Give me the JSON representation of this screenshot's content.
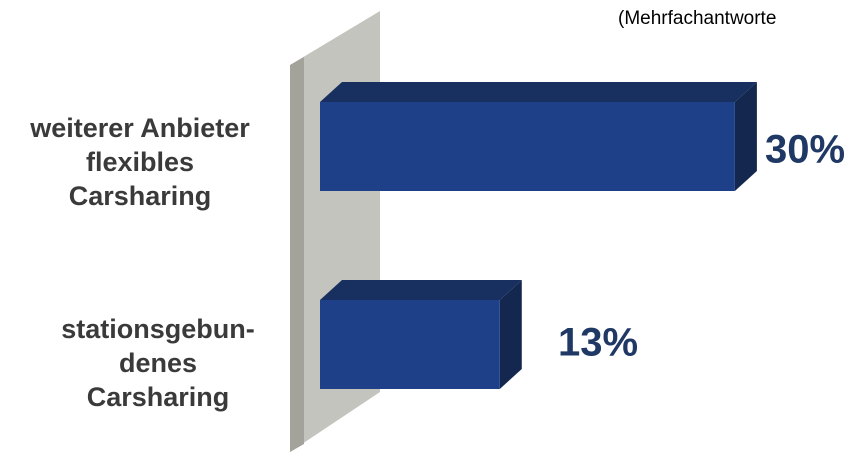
{
  "note": "(Mehrfachantworte",
  "chart_data": {
    "type": "bar",
    "orientation": "horizontal",
    "categories": [
      [
        "weiterer Anbieter",
        "flexibles",
        "Carsharing"
      ],
      [
        "stationsgebun-",
        "denes",
        "Carsharing"
      ]
    ],
    "values": [
      30,
      13
    ],
    "value_labels": [
      "30%",
      "13%"
    ],
    "xlim": [
      0,
      30
    ],
    "colors": {
      "bar_front": "#1d4088",
      "bar_top": "#18305f",
      "bar_side": "#14284f",
      "value_label": "#1f3864",
      "wall_front": "#a3a39b",
      "wall_side": "#c4c4be",
      "category_label": "#3a3a3a"
    }
  }
}
